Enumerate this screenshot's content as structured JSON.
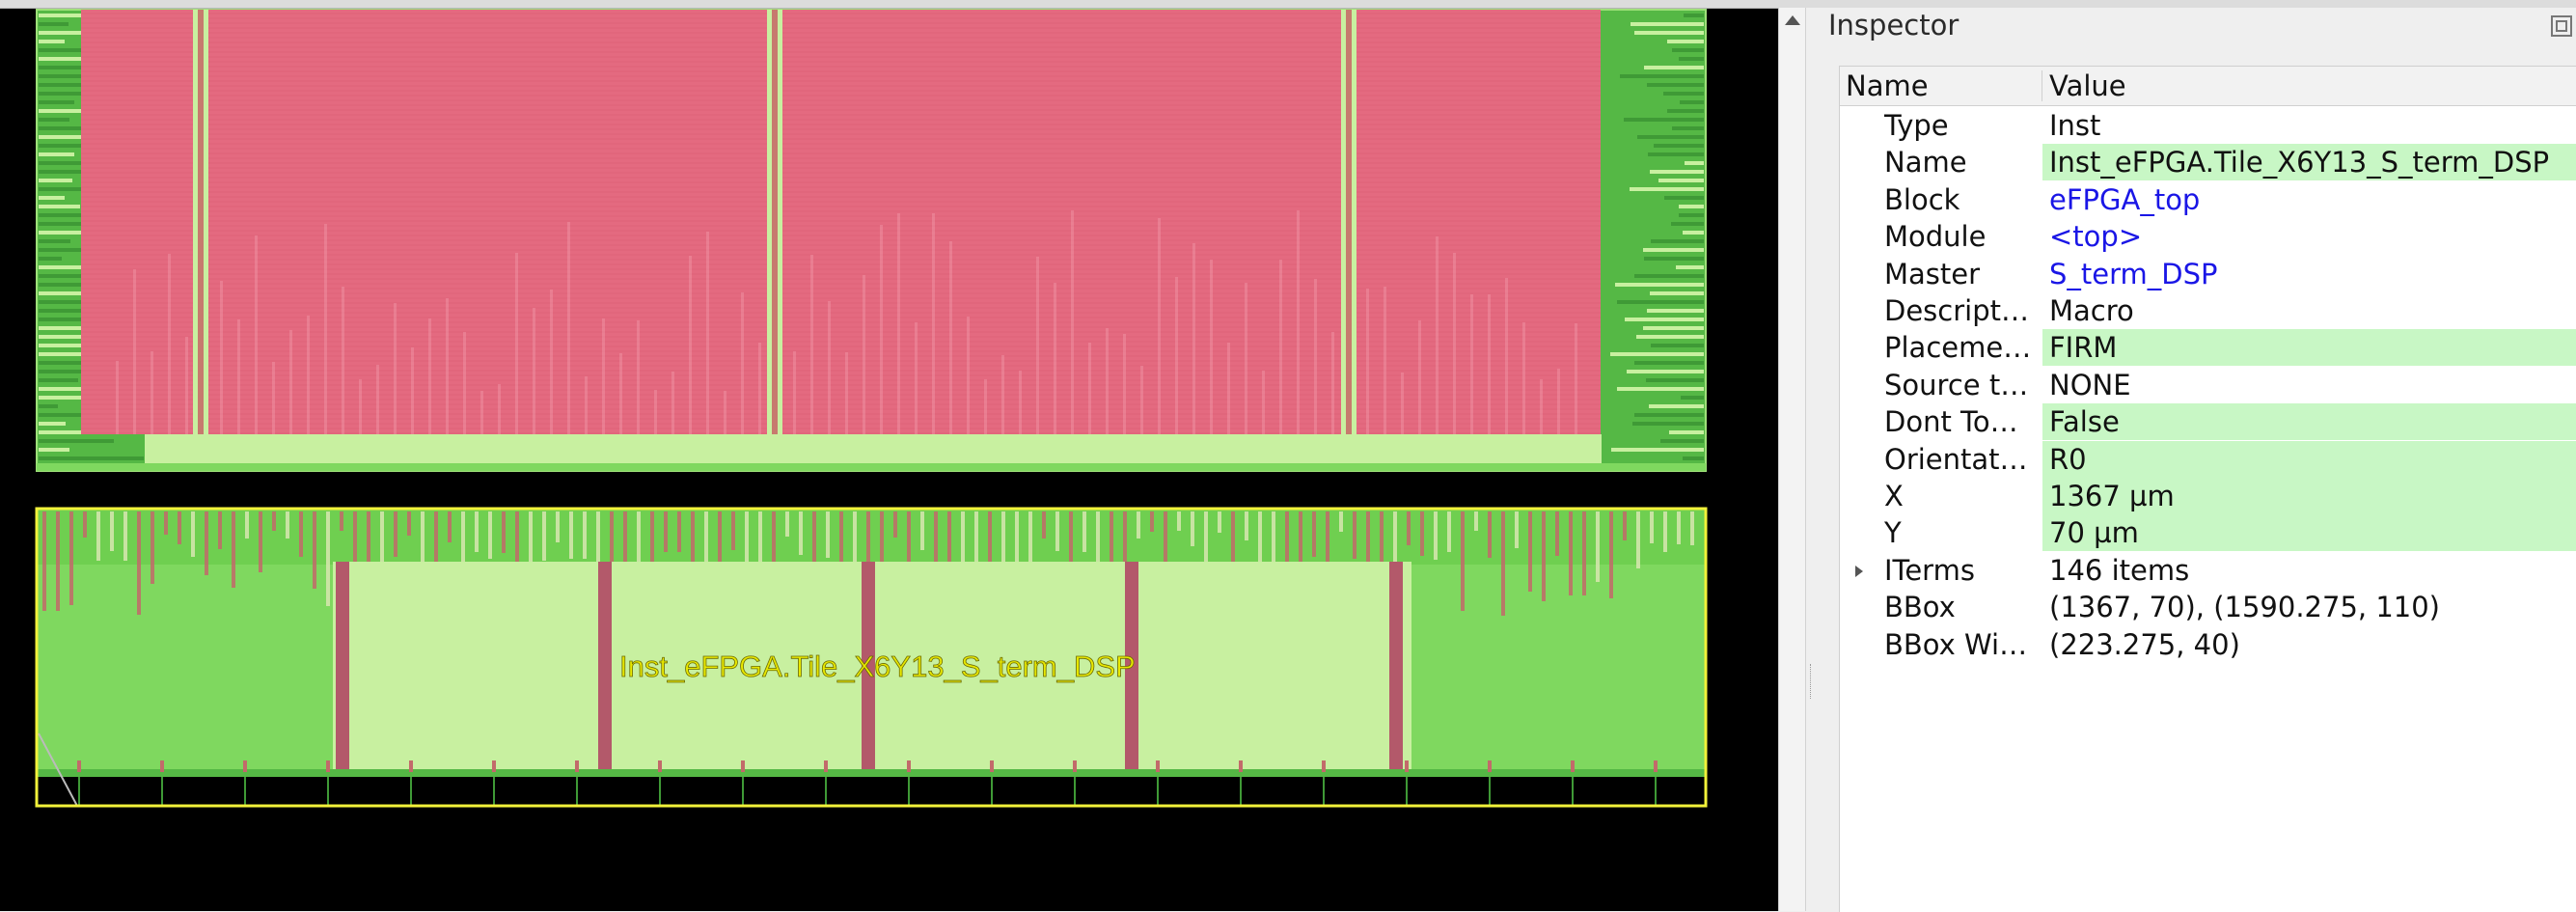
{
  "layout": {
    "selected_instance_label": "Inst_eFPGA.Tile_X6Y13_S_term_DSP",
    "colors": {
      "background": "#000000",
      "macro_fill": "#e46a80",
      "cell_fill": "#7fd85f",
      "light_fill": "#c8f0a0",
      "selection": "#ffff00"
    }
  },
  "inspector": {
    "title": "Inspector",
    "columns": {
      "name": "Name",
      "value": "Value"
    },
    "rows": [
      {
        "key": "Type",
        "value": "Inst",
        "editable": false,
        "link": false
      },
      {
        "key": "Name",
        "value": "Inst_eFPGA.Tile_X6Y13_S_term_DSP",
        "editable": true,
        "link": false
      },
      {
        "key": "Block",
        "value": "eFPGA_top",
        "editable": false,
        "link": true
      },
      {
        "key": "Module",
        "value": "<top>",
        "editable": false,
        "link": true
      },
      {
        "key": "Master",
        "value": "S_term_DSP",
        "editable": false,
        "link": true
      },
      {
        "key": "Descript…",
        "value": "Macro",
        "editable": false,
        "link": false
      },
      {
        "key": "Placeme…",
        "value": "FIRM",
        "editable": true,
        "link": false
      },
      {
        "key": "Source t…",
        "value": "NONE",
        "editable": false,
        "link": false
      },
      {
        "key": "Dont To…",
        "value": "False",
        "editable": true,
        "link": false
      },
      {
        "key": "Orientat…",
        "value": "R0",
        "editable": true,
        "link": false
      },
      {
        "key": "X",
        "value": "1367 µm",
        "editable": true,
        "link": false
      },
      {
        "key": "Y",
        "value": "70 µm",
        "editable": true,
        "link": false
      },
      {
        "key": "ITerms",
        "value": "146 items",
        "editable": false,
        "link": false,
        "expandable": true
      },
      {
        "key": "BBox",
        "value": "(1367, 70), (1590.275, 110)",
        "editable": false,
        "link": false
      },
      {
        "key": "BBox Wi…",
        "value": "(223.275, 40)",
        "editable": false,
        "link": false
      }
    ]
  }
}
